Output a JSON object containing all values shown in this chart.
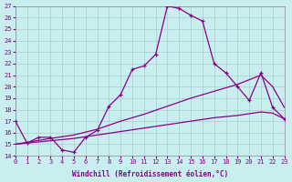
{
  "xlabel": "Windchill (Refroidissement éolien,°C)",
  "xlim": [
    0,
    23
  ],
  "ylim": [
    14,
    27
  ],
  "xticks": [
    0,
    1,
    2,
    3,
    4,
    5,
    6,
    7,
    8,
    9,
    10,
    11,
    12,
    13,
    14,
    15,
    16,
    17,
    18,
    19,
    20,
    21,
    22,
    23
  ],
  "yticks": [
    14,
    15,
    16,
    17,
    18,
    19,
    20,
    21,
    22,
    23,
    24,
    25,
    26,
    27
  ],
  "background_color": "#c8eef0",
  "line_color": "#880088",
  "grid_color": "#aacccc",
  "line1_x": [
    0,
    1,
    2,
    3,
    4,
    5,
    6,
    7,
    8,
    9,
    10,
    11,
    12,
    13,
    14,
    15,
    16,
    17,
    18,
    19,
    20,
    21,
    22,
    23
  ],
  "line1_y": [
    17.0,
    15.1,
    15.6,
    15.6,
    14.5,
    14.3,
    15.6,
    16.2,
    18.3,
    19.3,
    21.5,
    21.8,
    22.8,
    27.0,
    26.8,
    26.2,
    25.7,
    22.0,
    21.2,
    20.0,
    18.8,
    21.2,
    18.2,
    17.2
  ],
  "line2_x": [
    0,
    3,
    5,
    7,
    9,
    11,
    13,
    15,
    17,
    19,
    21,
    22,
    23
  ],
  "line2_y": [
    15.0,
    15.5,
    15.8,
    16.3,
    17.0,
    17.6,
    18.3,
    19.0,
    19.6,
    20.2,
    21.0,
    20.0,
    18.2
  ],
  "line3_x": [
    0,
    3,
    5,
    7,
    9,
    11,
    13,
    15,
    17,
    19,
    21,
    22,
    23
  ],
  "line3_y": [
    15.0,
    15.3,
    15.5,
    15.8,
    16.1,
    16.4,
    16.7,
    17.0,
    17.3,
    17.5,
    17.8,
    17.7,
    17.2
  ]
}
